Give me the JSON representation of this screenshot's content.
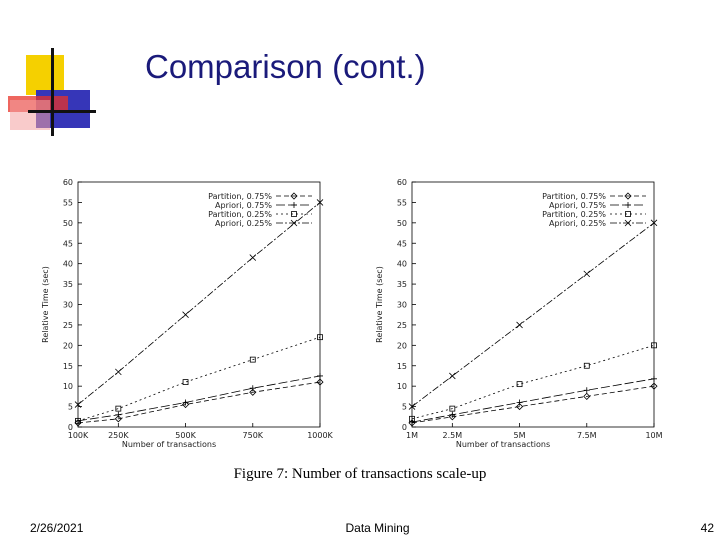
{
  "slide": {
    "title": "Comparison (cont.)",
    "caption": "Figure 7: Number of transactions scale-up",
    "footer_date": "2/26/2021",
    "footer_center": "Data Mining",
    "footer_page": "42"
  },
  "colors": {
    "logo_yellow": "#f5d000",
    "logo_red": "#e8332a",
    "logo_blue": "#3636b8",
    "title": "#1a1a7a"
  },
  "chart_data": [
    {
      "type": "line",
      "ylabel": "Relative Time (sec)",
      "xlabel": "Number of transactions",
      "categories": [
        "100K",
        "250K",
        "500K",
        "750K",
        "1000K"
      ],
      "x": [
        100,
        250,
        500,
        750,
        1000
      ],
      "ylim": [
        0,
        60
      ],
      "yticks": [
        0,
        5,
        10,
        15,
        20,
        25,
        30,
        35,
        40,
        45,
        50,
        55,
        60
      ],
      "legend_position": "top-right",
      "series": [
        {
          "name": "Partition, 0.75%",
          "values": [
            1,
            2,
            5.5,
            8.5,
            11
          ],
          "marker": "diamond"
        },
        {
          "name": "Apriori, 0.75%",
          "values": [
            1.5,
            3,
            6,
            9.5,
            12.5
          ],
          "marker": "plus"
        },
        {
          "name": "Partition, 0.25%",
          "values": [
            1.5,
            4.5,
            11,
            16.5,
            22
          ],
          "marker": "square"
        },
        {
          "name": "Apriori, 0.25%",
          "values": [
            5.5,
            13.5,
            27.5,
            41.5,
            55
          ],
          "marker": "cross"
        }
      ]
    },
    {
      "type": "line",
      "ylabel": "Relative Time (sec)",
      "xlabel": "Number of transactions",
      "categories": [
        "1M",
        "2.5M",
        "5M",
        "7.5M",
        "10M"
      ],
      "x": [
        1,
        2.5,
        5,
        7.5,
        10
      ],
      "ylim": [
        0,
        60
      ],
      "yticks": [
        0,
        5,
        10,
        15,
        20,
        25,
        30,
        35,
        40,
        45,
        50,
        55,
        60
      ],
      "legend_position": "top-right",
      "series": [
        {
          "name": "Partition, 0.75%",
          "values": [
            1,
            2.5,
            5,
            7.5,
            10
          ],
          "marker": "diamond"
        },
        {
          "name": "Apriori, 0.75%",
          "values": [
            1.2,
            3,
            6,
            9,
            11.8
          ],
          "marker": "plus"
        },
        {
          "name": "Partition, 0.25%",
          "values": [
            2,
            4.5,
            10.5,
            15,
            20
          ],
          "marker": "square"
        },
        {
          "name": "Apriori, 0.25%",
          "values": [
            5,
            12.5,
            25,
            37.5,
            50
          ],
          "marker": "cross"
        }
      ]
    }
  ]
}
